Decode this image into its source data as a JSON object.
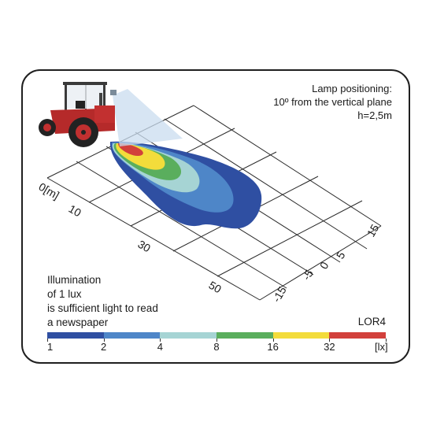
{
  "lamp_info": {
    "line1": "Lamp positioning:",
    "line2": "10º from the vertical plane",
    "line3": "h=2,5m"
  },
  "distance_axis": {
    "labels": [
      "0[m]",
      "10",
      "30",
      "50"
    ]
  },
  "width_axis": {
    "labels": [
      "15",
      "5",
      "0",
      "5",
      "15"
    ],
    "signs": [
      "",
      "",
      "",
      "-",
      "-"
    ]
  },
  "note": {
    "line1": "Illumination",
    "line2": "of 1 lux",
    "line3": "is sufficient light to read",
    "line4": "a newspaper"
  },
  "model": "LOR4",
  "scale": {
    "colors": [
      "#2f4fa2",
      "#4e86c8",
      "#a6d4d4",
      "#5aae5d",
      "#f3dc3b",
      "#d2403b"
    ],
    "labels": [
      "1",
      "2",
      "4",
      "8",
      "16",
      "32",
      "[lx]"
    ]
  },
  "zone_colors": {
    "lux1": "#2f4fa2",
    "lux2": "#4e86c8",
    "lux4": "#a6d4d4",
    "lux8": "#5aae5d",
    "lux16": "#f3dc3b",
    "lux32": "#d2403b"
  },
  "icons": {
    "tractor": "tractor-icon",
    "beam": "light-beam"
  }
}
